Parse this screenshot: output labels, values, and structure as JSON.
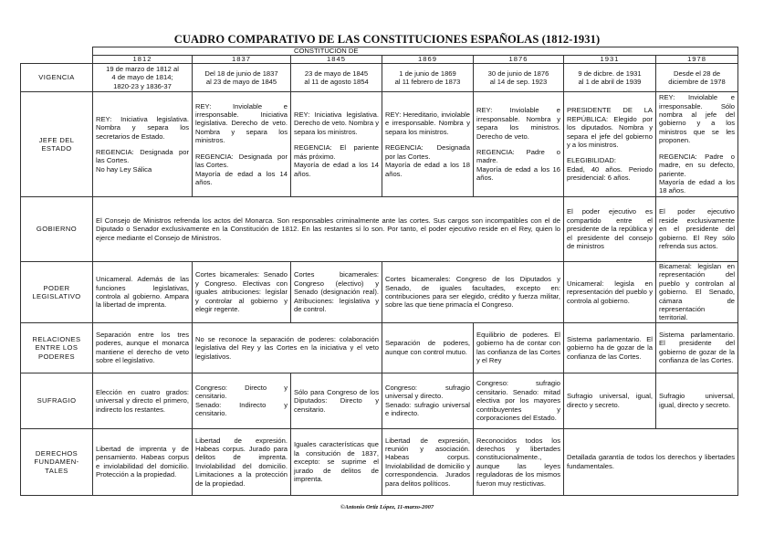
{
  "title": "CUADRO COMPARATIVO DE LAS CONSTITUCIONES ESPAÑOLAS (1812-1931)",
  "header_group": "CONSTITUCIÓN DE",
  "years": [
    "1812",
    "1837",
    "1845",
    "1869",
    "1876",
    "1931",
    "1978"
  ],
  "rows": [
    {
      "label": [
        "VIGENCIA"
      ],
      "center": true,
      "cells": [
        {
          "cols": [
            "1812"
          ],
          "paras": [
            [
              "19 de marzo de 1812 al",
              "4 de mayo de 1814;",
              "1820-23 y 1836-37"
            ]
          ]
        },
        {
          "cols": [
            "1837"
          ],
          "paras": [
            [
              "Del 18 de junio de 1837",
              "al 23 de mayo de 1845"
            ]
          ]
        },
        {
          "cols": [
            "1845"
          ],
          "paras": [
            [
              "23 de mayo de 1845",
              "al 11 de agosto 1854"
            ]
          ]
        },
        {
          "cols": [
            "1869"
          ],
          "paras": [
            [
              "1 de junio de 1869",
              "al 11 febrero de 1873"
            ]
          ]
        },
        {
          "cols": [
            "1876"
          ],
          "paras": [
            [
              "30 de junio de 1876",
              "al 14 de sep. 1923"
            ]
          ]
        },
        {
          "cols": [
            "1931"
          ],
          "paras": [
            [
              "9 de dicbre. de 1931",
              "al 1 de abril de 1939"
            ]
          ]
        },
        {
          "cols": [
            "1978"
          ],
          "paras": [
            [
              "Desde el 28 de",
              "diciembre de 1978"
            ]
          ]
        }
      ]
    },
    {
      "label": [
        "JEFE DEL",
        "ESTADO"
      ],
      "cells": [
        {
          "cols": [
            "1812"
          ],
          "paras": [
            [
              "REY: Iniciativa legislativa. Nombra y separa los secretarios de Estado."
            ],
            [
              "REGENCIA: Designada por las Cortes.",
              "No hay Ley Sálica"
            ]
          ]
        },
        {
          "cols": [
            "1837"
          ],
          "paras": [
            [
              "REY: Inviolable e irresponsable. Iniciativa legislativa. Derecho de veto. Nombra y separa los ministros."
            ],
            [
              "REGENCIA: Designada por las Cortes.",
              "Mayoría de edad a los 14 años."
            ]
          ]
        },
        {
          "cols": [
            "1845"
          ],
          "paras": [
            [
              "REY: Iniciativa legislativa. Derecho de veto. Nombra y separa los ministros."
            ],
            [
              "REGENCIA: El pariente más próximo.",
              "Mayoría de edad a los 14 años."
            ]
          ]
        },
        {
          "cols": [
            "1869"
          ],
          "paras": [
            [
              "REY: Hereditario, inviolable e irresponsable. Nombra y separa los ministros."
            ],
            [
              "REGENCIA: Designada por las Cortes.",
              "Mayoría de edad a los 18 años."
            ]
          ]
        },
        {
          "cols": [
            "1876"
          ],
          "paras": [
            [
              "REY: Inviolable e irresponsable. Nombra y separa los ministros. Derecho de veto."
            ],
            [
              "REGENCIA: Padre o madre.",
              "Mayoría de edad a los 16 años."
            ]
          ]
        },
        {
          "cols": [
            "1931"
          ],
          "paras": [
            [
              "PRESIDENTE DE LA REPÚBLICA: Elegido por los diputados. Nombra y separa el jefe del gobierno y a los ministros."
            ],
            [
              "ELEGIBILIDAD:",
              "Edad, 40 años. Periodo presidencial: 6 años."
            ]
          ]
        },
        {
          "cols": [
            "1978"
          ],
          "paras": [
            [
              "REY: Inviolable e irresponsable. Sólo nombra al jefe del gobierno y a los ministros que se les proponen."
            ],
            [
              "REGENCIA: Padre o madre, en su defecto, pariente.",
              "Mayoría de edad a los 18 años."
            ]
          ]
        }
      ]
    },
    {
      "label": [
        "GOBIERNO"
      ],
      "cells": [
        {
          "cols": [
            "1812",
            "1837",
            "1845",
            "1869",
            "1876"
          ],
          "paras": [
            [
              "El Consejo de Ministros refrenda los actos del Monarca. Son responsables criminalmente ante las cortes. Sus cargos son incompatibles con el de Diputado o Senador exclusivamente en la Constitución de 1812. En las restantes sí lo son. Por tanto, el poder ejecutivo reside en el Rey, quien lo ejerce mediante el Consejo de Ministros."
            ]
          ]
        },
        {
          "cols": [
            "1931"
          ],
          "paras": [
            [
              "El poder ejecutivo es compartido entre el presidente de la república y el presidente del consejo de ministros"
            ]
          ]
        },
        {
          "cols": [
            "1978"
          ],
          "paras": [
            [
              "El poder ejecutivo reside exclusivamente en el presidente del gobierno. El Rey sólo refrenda sus actos."
            ]
          ]
        }
      ]
    },
    {
      "label": [
        "PODER",
        "LEGISLATIVO"
      ],
      "cells": [
        {
          "cols": [
            "1812"
          ],
          "paras": [
            [
              "Unicameral. Además de las funciones legislativas, controla al gobierno. Ampara la libertad de imprenta."
            ]
          ]
        },
        {
          "cols": [
            "1837"
          ],
          "paras": [
            [
              "Cortes bicamerales: Senado y Congreso. Electivas con iguales atribuciones: legislar y controlar al gobierno y elegir regente."
            ]
          ]
        },
        {
          "cols": [
            "1845"
          ],
          "paras": [
            [
              "Cortes bicamerales: Congreso (electivo) y Senado (designación real). Atribuciones: legislativa y de control."
            ]
          ]
        },
        {
          "cols": [
            "1869",
            "1876"
          ],
          "paras": [
            [
              "Cortes bicamerales: Congreso de los Diputados y Senado, de iguales facultades, excepto en: contribuciones para ser elegido, crédito y fuerza militar, sobre las que tiene primacía el Congreso."
            ]
          ]
        },
        {
          "cols": [
            "1931"
          ],
          "paras": [
            [
              "Unicameral: legisla en representación del pueblo y controla al gobierno."
            ]
          ]
        },
        {
          "cols": [
            "1978"
          ],
          "paras": [
            [
              "Bicameral: legislan en representación del pueblo y controlan al gobierno. El Senado, cámara de representación territorial."
            ]
          ]
        }
      ]
    },
    {
      "label": [
        "RELACIONES",
        "ENTRE LOS",
        "PODERES"
      ],
      "cells": [
        {
          "cols": [
            "1812"
          ],
          "paras": [
            [
              "Separación entre los tres poderes, aunque el monarca mantiene el derecho de veto sobre el legislativo."
            ]
          ]
        },
        {
          "cols": [
            "1837",
            "1845"
          ],
          "paras": [
            [
              "No se reconoce la separación de poderes: colaboración legislativa del Rey y las Cortes en la iniciativa y el veto legislativos."
            ]
          ]
        },
        {
          "cols": [
            "1869"
          ],
          "paras": [
            [
              "Separación de poderes, aunque con control mutuo."
            ]
          ]
        },
        {
          "cols": [
            "1876"
          ],
          "paras": [
            [
              "Equilibrio de poderes. El gobierno ha de contar con las confianza de las Cortes y el Rey"
            ]
          ]
        },
        {
          "cols": [
            "1931"
          ],
          "paras": [
            [
              "Sistema parlamentario. El gobierno ha de gozar de la confianza de las Cortes."
            ]
          ]
        },
        {
          "cols": [
            "1978"
          ],
          "paras": [
            [
              "Sistema parlamentario. El presidente del gobierno de gozar de la confianza de las Cortes."
            ]
          ]
        }
      ]
    },
    {
      "label": [
        "SUFRAGIO"
      ],
      "cells": [
        {
          "cols": [
            "1812"
          ],
          "paras": [
            [
              "Elección en cuatro grados: universal y directo el primero, indirecto los restantes."
            ]
          ]
        },
        {
          "cols": [
            "1837"
          ],
          "paras": [
            [
              "Congreso: Directo y censitario.",
              "Senado: Indirecto y censitario."
            ]
          ]
        },
        {
          "cols": [
            "1845"
          ],
          "paras": [
            [
              "Sólo para Congreso de los Diputados: Directo y censitario."
            ]
          ]
        },
        {
          "cols": [
            "1869"
          ],
          "paras": [
            [
              "Congreso: sufragio universal y directo.",
              "Senado: sufragio universal e indirecto."
            ]
          ]
        },
        {
          "cols": [
            "1876"
          ],
          "paras": [
            [
              "Congreso: sufragio censitario. Senado: mitad electiva por los mayores contribuyentes y corporaciones del Estado."
            ]
          ]
        },
        {
          "cols": [
            "1931"
          ],
          "paras": [
            [
              "Sufragio universal, igual, directo y secreto."
            ]
          ]
        },
        {
          "cols": [
            "1978"
          ],
          "paras": [
            [
              "Sufragio universal, igual, directo y secreto."
            ]
          ]
        }
      ]
    },
    {
      "label": [
        "DERECHOS",
        "FUNDAMEN-",
        "TALES"
      ],
      "cells": [
        {
          "cols": [
            "1812"
          ],
          "paras": [
            [
              "Libertad de imprenta y de pensamiento. Habeas corpus e inviolabilidad del domicilio. Protección a la propiedad."
            ]
          ]
        },
        {
          "cols": [
            "1837"
          ],
          "paras": [
            [
              "Libertad de expresión. Habeas corpus. Jurado para delitos de imprenta. Inviolabilidad del domicilio. Limitaciones a la protección de la propiedad."
            ]
          ]
        },
        {
          "cols": [
            "1845"
          ],
          "paras": [
            [
              "Iguales características que la consitución de 1837, excepto: se suprime el jurado de delitos de imprenta."
            ]
          ]
        },
        {
          "cols": [
            "1869"
          ],
          "paras": [
            [
              "Libertad de expresión, reunión y asociación. Habeas corpus. Inviolabilidad de domicilio y correspondencia. Jurados para delitos políticos."
            ]
          ]
        },
        {
          "cols": [
            "1876"
          ],
          "paras": [
            [
              "Reconocidos todos los derechos y libertades constitucionalmente., aunque las leyes reguladoras de los mismos fueron muy restictivas."
            ]
          ]
        },
        {
          "cols": [
            "1931",
            "1978"
          ],
          "paras": [
            [
              "Detallada garantía de todos los derechos y libertades fundamentales."
            ]
          ]
        }
      ]
    }
  ],
  "footer": "©Antonio Ortiz López, 11-marzo-2007"
}
